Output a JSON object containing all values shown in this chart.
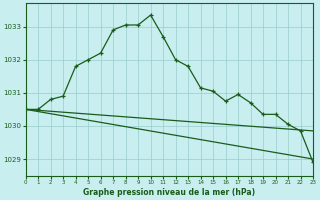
{
  "title": "Graphe pression niveau de la mer (hPa)",
  "background_color": "#c8eef0",
  "grid_color": "#99cccc",
  "line_color": "#1a5c1a",
  "xlim": [
    0,
    23
  ],
  "ylim": [
    1028.5,
    1033.7
  ],
  "yticks": [
    1029,
    1030,
    1031,
    1032,
    1033
  ],
  "xticks": [
    0,
    1,
    2,
    3,
    4,
    5,
    6,
    7,
    8,
    9,
    10,
    11,
    12,
    13,
    14,
    15,
    16,
    17,
    18,
    19,
    20,
    21,
    22,
    23
  ],
  "series1_x": [
    0,
    1,
    2,
    3,
    4,
    5,
    6,
    7,
    8,
    9,
    10,
    11,
    12,
    13,
    14,
    15,
    16,
    17,
    18,
    19,
    20,
    21,
    22,
    23
  ],
  "series1_y": [
    1030.5,
    1030.5,
    1030.8,
    1030.9,
    1031.8,
    1032.0,
    1032.2,
    1032.9,
    1033.05,
    1033.05,
    1033.35,
    1032.7,
    1032.0,
    1031.8,
    1031.15,
    1031.05,
    1030.75,
    1030.95,
    1030.7,
    1030.35,
    1030.35,
    1030.05,
    1029.85,
    1028.9
  ],
  "series2_x": [
    0,
    23
  ],
  "series2_y": [
    1030.5,
    1029.85
  ],
  "series3_x": [
    0,
    23
  ],
  "series3_y": [
    1030.5,
    1029.0
  ],
  "title_fontsize": 6,
  "tick_fontsize": 5,
  "xlabel_fontsize": 5.5
}
